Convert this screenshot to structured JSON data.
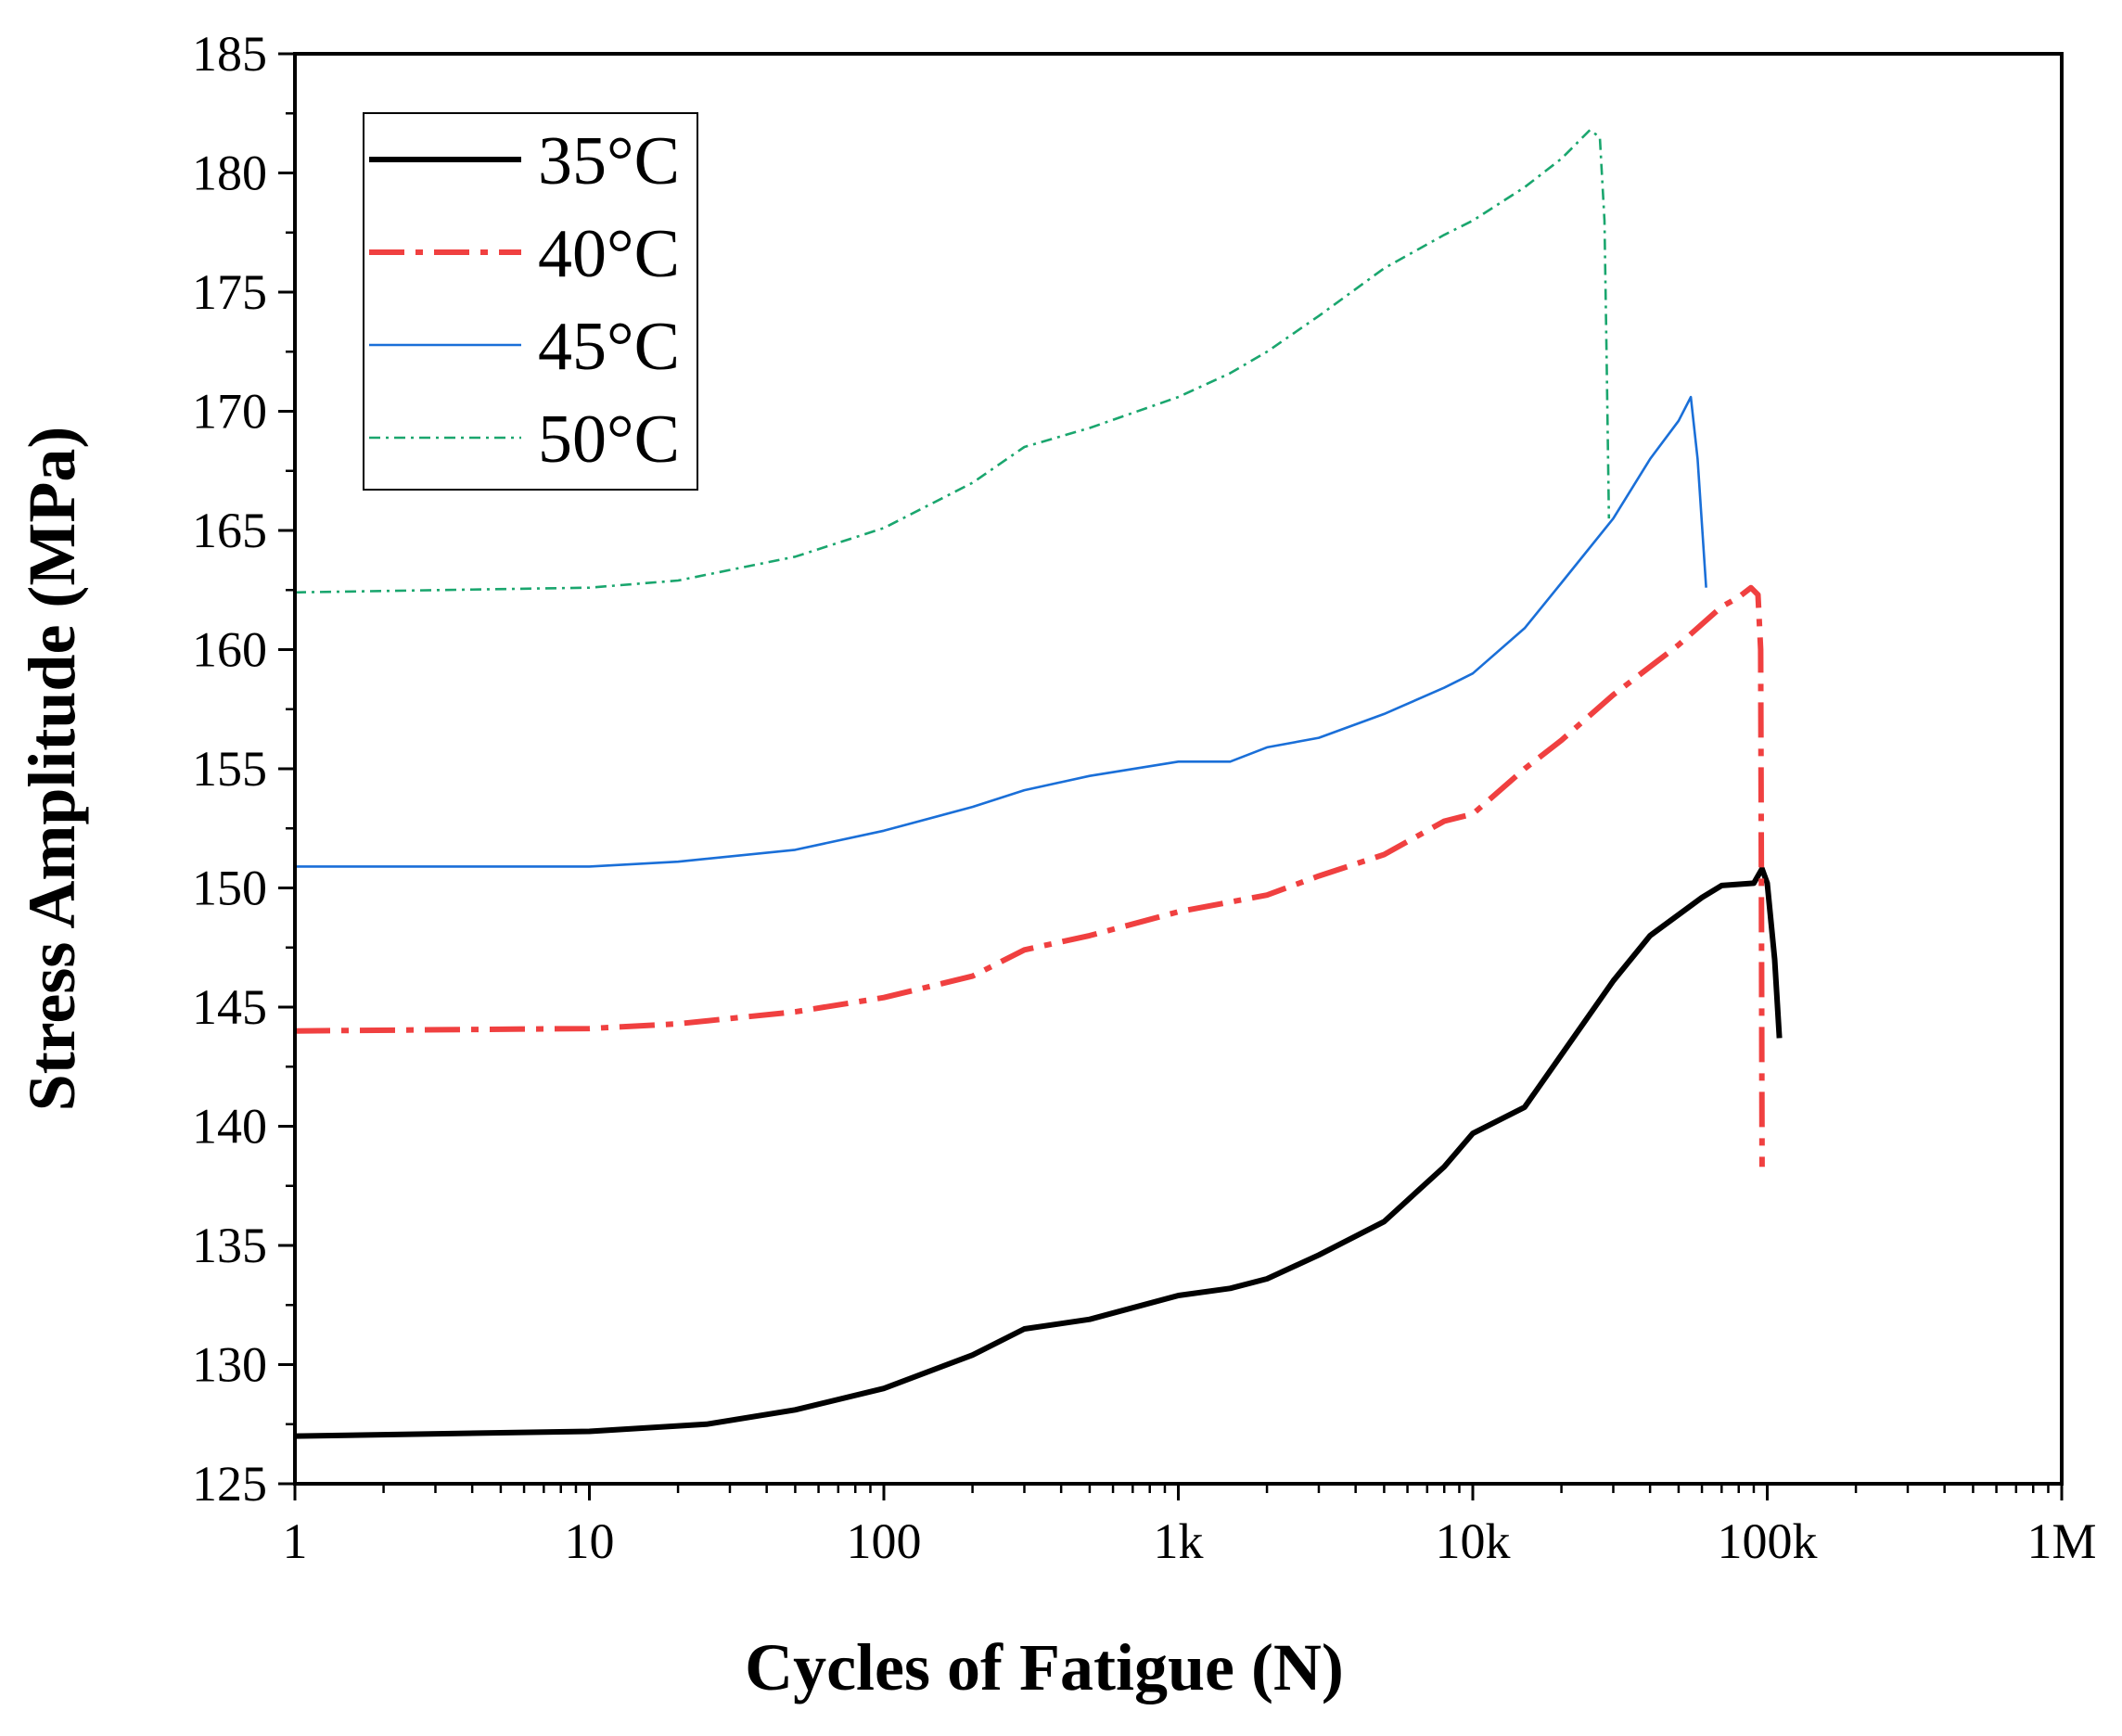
{
  "chart_data": {
    "type": "line",
    "title": "",
    "xlabel": "Cycles of Fatigue (N)",
    "ylabel": "Stress Amplitude (MPa)",
    "xscale": "log",
    "xlim": [
      1,
      1000000
    ],
    "ylim": [
      125,
      185
    ],
    "x_ticks": [
      {
        "value": 1,
        "label": "1"
      },
      {
        "value": 10,
        "label": "10"
      },
      {
        "value": 100,
        "label": "100"
      },
      {
        "value": 1000,
        "label": "1k"
      },
      {
        "value": 10000,
        "label": "10k"
      },
      {
        "value": 100000,
        "label": "100k"
      },
      {
        "value": 1000000,
        "label": "1M"
      }
    ],
    "y_ticks": [
      125,
      130,
      135,
      140,
      145,
      150,
      155,
      160,
      165,
      170,
      175,
      180,
      185
    ],
    "legend_position": "top-left",
    "series": [
      {
        "name": "35°C",
        "color": "#000000",
        "style": "solid-thick",
        "points": [
          [
            1,
            127.0
          ],
          [
            10,
            127.2
          ],
          [
            25,
            127.5
          ],
          [
            50,
            128.1
          ],
          [
            100,
            129.0
          ],
          [
            200,
            130.4
          ],
          [
            300,
            131.5
          ],
          [
            500,
            131.9
          ],
          [
            1000,
            132.9
          ],
          [
            1500,
            133.2
          ],
          [
            2000,
            133.6
          ],
          [
            3000,
            134.6
          ],
          [
            5000,
            136.0
          ],
          [
            8000,
            138.3
          ],
          [
            10000,
            139.7
          ],
          [
            15000,
            140.8
          ],
          [
            20000,
            143.0
          ],
          [
            30000,
            146.1
          ],
          [
            40000,
            148.0
          ],
          [
            60000,
            149.6
          ],
          [
            70000,
            150.1
          ],
          [
            90000,
            150.2
          ],
          [
            96000,
            150.8
          ],
          [
            100000,
            150.2
          ],
          [
            106000,
            147.0
          ],
          [
            110000,
            143.7
          ]
        ]
      },
      {
        "name": "40°C",
        "color": "#f04040",
        "style": "dashdot-thick",
        "points": [
          [
            1,
            144.0
          ],
          [
            10,
            144.1
          ],
          [
            20,
            144.3
          ],
          [
            50,
            144.8
          ],
          [
            100,
            145.4
          ],
          [
            200,
            146.3
          ],
          [
            300,
            147.4
          ],
          [
            500,
            148.0
          ],
          [
            1000,
            149.0
          ],
          [
            2000,
            149.7
          ],
          [
            3000,
            150.5
          ],
          [
            5000,
            151.4
          ],
          [
            8000,
            152.8
          ],
          [
            10000,
            153.1
          ],
          [
            15000,
            155.0
          ],
          [
            20000,
            156.2
          ],
          [
            30000,
            158.1
          ],
          [
            50000,
            160.2
          ],
          [
            70000,
            161.8
          ],
          [
            80000,
            162.2
          ],
          [
            88000,
            162.6
          ],
          [
            93000,
            162.3
          ],
          [
            95000,
            160.0
          ],
          [
            95500,
            150.0
          ],
          [
            96000,
            138.3
          ]
        ]
      },
      {
        "name": "45°C",
        "color": "#1a6fd8",
        "style": "solid-thin",
        "points": [
          [
            1,
            150.9
          ],
          [
            10,
            150.9
          ],
          [
            20,
            151.1
          ],
          [
            50,
            151.6
          ],
          [
            100,
            152.4
          ],
          [
            200,
            153.4
          ],
          [
            300,
            154.1
          ],
          [
            500,
            154.7
          ],
          [
            1000,
            155.3
          ],
          [
            1500,
            155.3
          ],
          [
            2000,
            155.9
          ],
          [
            3000,
            156.3
          ],
          [
            5000,
            157.3
          ],
          [
            8000,
            158.4
          ],
          [
            10000,
            159.0
          ],
          [
            15000,
            160.9
          ],
          [
            20000,
            162.8
          ],
          [
            30000,
            165.5
          ],
          [
            40000,
            168.0
          ],
          [
            50000,
            169.6
          ],
          [
            55000,
            170.6
          ],
          [
            58000,
            168.0
          ],
          [
            62000,
            162.6
          ]
        ]
      },
      {
        "name": "50°C",
        "color": "#1aa66e",
        "style": "dashdot-thin",
        "points": [
          [
            1,
            162.4
          ],
          [
            10,
            162.6
          ],
          [
            20,
            162.9
          ],
          [
            50,
            163.9
          ],
          [
            100,
            165.1
          ],
          [
            200,
            167.0
          ],
          [
            300,
            168.5
          ],
          [
            500,
            169.3
          ],
          [
            1000,
            170.6
          ],
          [
            1500,
            171.6
          ],
          [
            2000,
            172.5
          ],
          [
            3000,
            174.0
          ],
          [
            5000,
            176.0
          ],
          [
            8000,
            177.4
          ],
          [
            10000,
            178.0
          ],
          [
            15000,
            179.4
          ],
          [
            20000,
            180.6
          ],
          [
            25000,
            181.8
          ],
          [
            27000,
            181.5
          ],
          [
            28000,
            178.0
          ],
          [
            28500,
            172.0
          ],
          [
            29000,
            165.5
          ]
        ]
      }
    ]
  }
}
